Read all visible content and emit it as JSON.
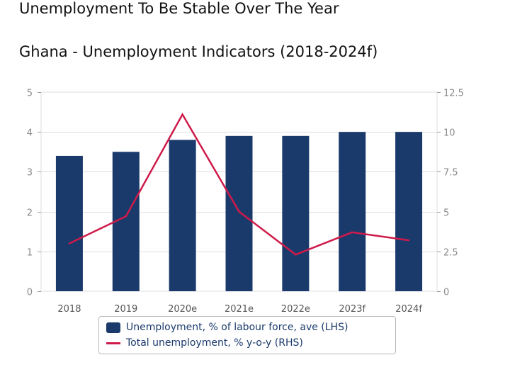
{
  "headline": "Unemployment To Be Stable Over The Year",
  "subheadline": "Ghana - Unemployment Indicators (2018-2024f)",
  "colors": {
    "bar": "#1a3a6c",
    "line": "#cf1a4a",
    "grid": "#dddddd",
    "axis_text": "#8a8a8a"
  },
  "chart_data": {
    "type": "bar",
    "title": "",
    "categories": [
      "2018",
      "2019",
      "2020e",
      "2021e",
      "2022e",
      "2023f",
      "2024f"
    ],
    "series": [
      {
        "name": "Unemployment, % of labour force, ave (LHS)",
        "type": "bar",
        "axis": "left",
        "values": [
          3.4,
          3.5,
          3.8,
          3.9,
          3.9,
          4.0,
          4.0
        ]
      },
      {
        "name": "Total unemployment, % y-o-y (RHS)",
        "type": "line",
        "axis": "right",
        "values": [
          3.0,
          4.7,
          11.1,
          5.0,
          2.3,
          3.7,
          3.2
        ]
      }
    ],
    "y_left": {
      "range": [
        0,
        5
      ],
      "ticks": [
        "0",
        "1",
        "2",
        "3",
        "4",
        "5"
      ]
    },
    "y_right": {
      "range": [
        0,
        12.5
      ],
      "ticks": [
        "0",
        "2.5",
        "5",
        "7.5",
        "10",
        "12.5"
      ]
    },
    "grid": true,
    "legend_position": "bottom"
  }
}
